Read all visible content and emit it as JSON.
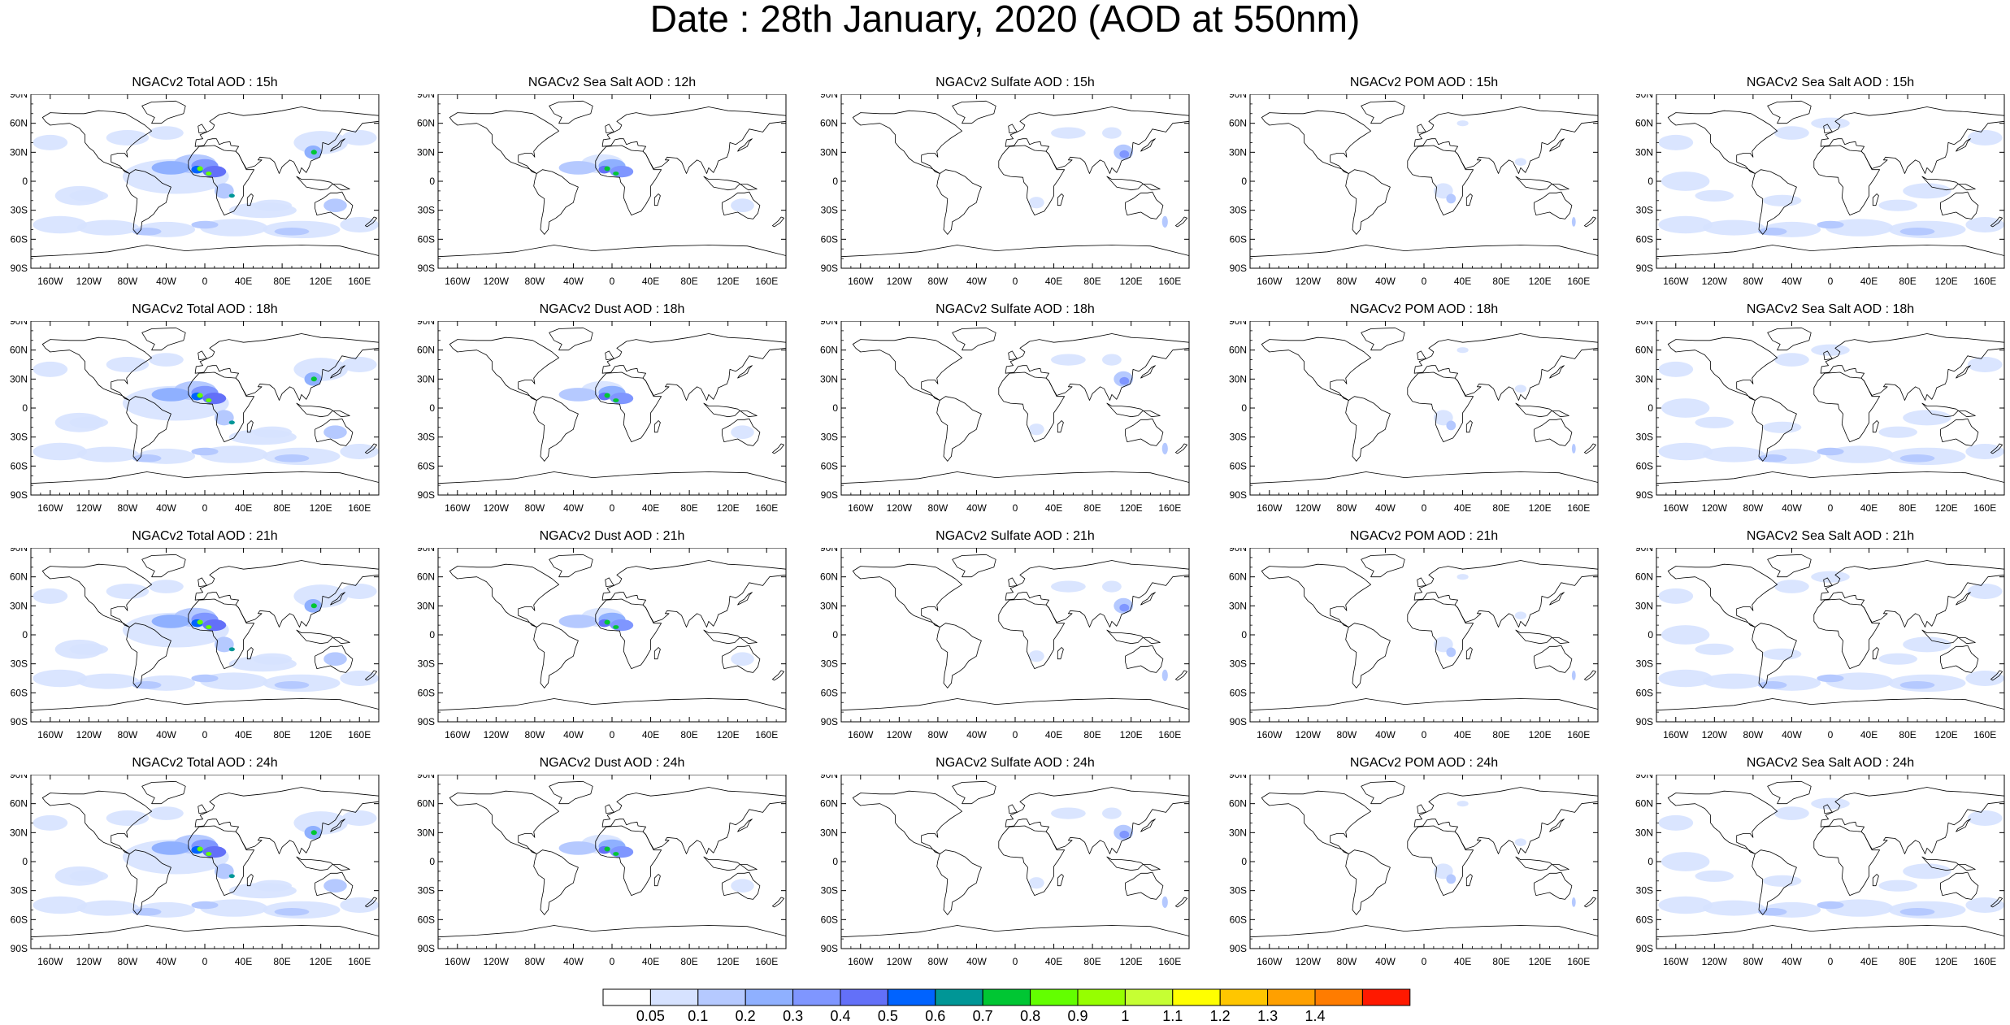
{
  "title": "Date : 28th January, 2020 (AOD at 550nm)",
  "map_axes": {
    "lat_ticks": [
      "90N",
      "60N",
      "30N",
      "0",
      "30S",
      "60S",
      "90S"
    ],
    "lon_ticks": [
      "160W",
      "120W",
      "80W",
      "40W",
      "0",
      "40E",
      "80E",
      "120E",
      "160E"
    ],
    "lon_values": [
      -160,
      -120,
      -80,
      -40,
      0,
      40,
      80,
      120,
      160
    ],
    "lat_values": [
      90,
      60,
      30,
      0,
      -30,
      -60,
      -90
    ]
  },
  "rows": [
    [
      "NGACv2 Total AOD : 15h",
      "NGACv2 Sea Salt  AOD : 12h",
      "NGACv2 Sulfate AOD : 15h",
      "NGACv2 POM AOD : 15h",
      "NGACv2 Sea Salt  AOD : 15h"
    ],
    [
      "NGACv2 Total AOD : 18h",
      "NGACv2 Dust AOD : 18h",
      "NGACv2 Sulfate AOD : 18h",
      "NGACv2 POM AOD : 18h",
      "NGACv2 Sea Salt  AOD : 18h"
    ],
    [
      "NGACv2 Total AOD : 21h",
      "NGACv2 Dust AOD : 21h",
      "NGACv2 Sulfate AOD : 21h",
      "NGACv2 POM AOD : 21h",
      "NGACv2 Sea Salt  AOD : 21h"
    ],
    [
      "NGACv2 Total AOD : 24h",
      "NGACv2 Dust AOD : 24h",
      "NGACv2 Sulfate AOD : 24h",
      "NGACv2 POM AOD : 24h",
      "NGACv2 Sea Salt  AOD : 24h"
    ]
  ],
  "colorbar": {
    "labels": [
      "0.05",
      "0.1",
      "0.2",
      "0.3",
      "0.4",
      "0.5",
      "0.6",
      "0.7",
      "0.8",
      "0.9",
      "1",
      "1.1",
      "1.2",
      "1.3",
      "1.4"
    ],
    "colors": [
      "#ffffff",
      "#d6e2ff",
      "#b5c9ff",
      "#8fb0ff",
      "#7f96ff",
      "#6370f8",
      "#0063ff",
      "#009696",
      "#00c633",
      "#63ff00",
      "#96ff00",
      "#c6ff33",
      "#ffff00",
      "#ffc600",
      "#ffa000",
      "#ff7c00",
      "#ff1900"
    ]
  },
  "colors": {
    "land_outline": "#000000",
    "aod_low": "#d6e2ff",
    "aod_mid": "#8fb0ff",
    "aod_high": "#00c633"
  }
}
